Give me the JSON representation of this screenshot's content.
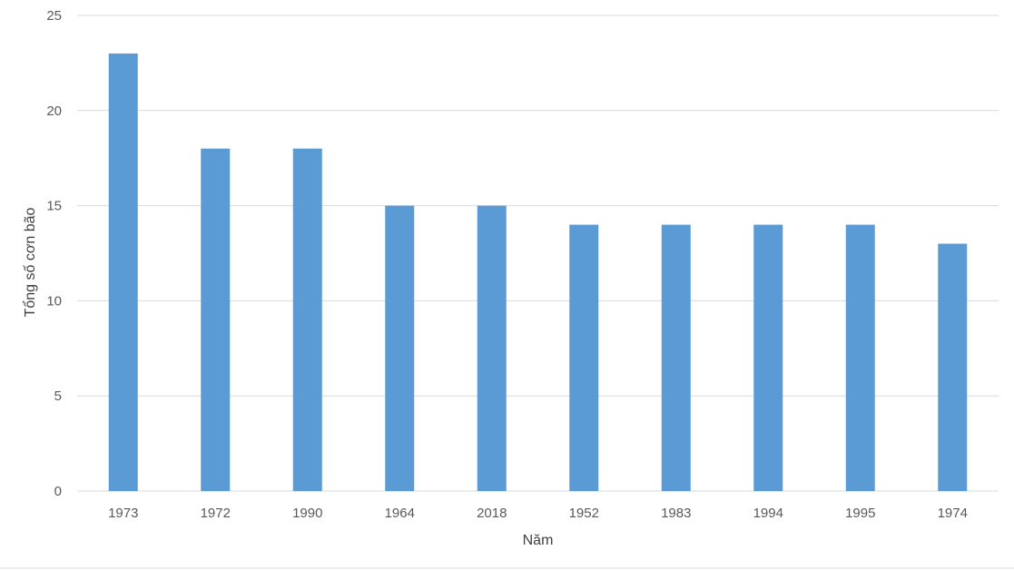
{
  "chart_data": {
    "type": "bar",
    "title": "",
    "xlabel": "Năm",
    "ylabel": "Tổng số cơn bão",
    "categories": [
      "1973",
      "1972",
      "1990",
      "1964",
      "2018",
      "1952",
      "1983",
      "1994",
      "1995",
      "1974"
    ],
    "values": [
      23,
      18,
      18,
      15,
      15,
      14,
      14,
      14,
      14,
      13
    ],
    "ylim": [
      0,
      25
    ],
    "yticks": [
      0,
      5,
      10,
      15,
      20,
      25
    ],
    "grid": true,
    "legend": "none",
    "bar_color": "#5b9bd5"
  }
}
